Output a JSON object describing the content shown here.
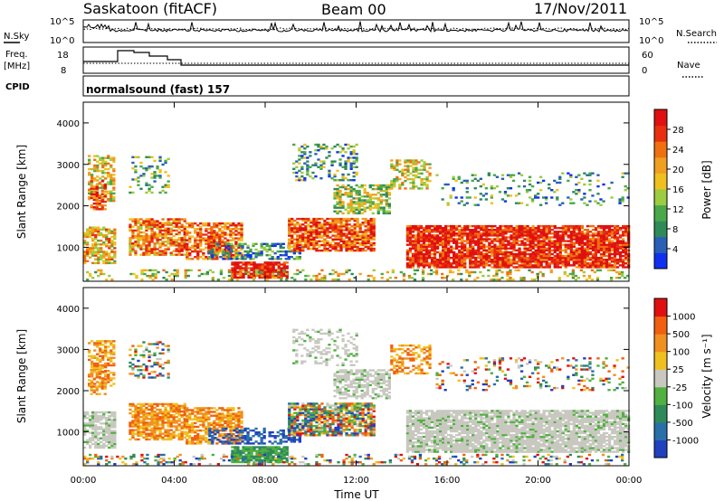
{
  "header": {
    "title": "Saskatoon (fitACF)",
    "beam": "Beam 00",
    "date": "17/Nov/2011"
  },
  "strips": {
    "nsky_label": "N.Sky",
    "nsearch_label": "N.Search",
    "nsky_ticks": [
      "10^5",
      "10^0"
    ],
    "nsearch_ticks": [
      "10^5",
      "10^0"
    ],
    "freq_label": "Freq.",
    "freq_unit": "[MHz]",
    "freq_ticks": [
      "18",
      "8"
    ],
    "nave_label": "Nave",
    "nave_ticks": [
      "60",
      "0"
    ],
    "cpid_label": "CPID",
    "cpid_value": "normalsound (fast) 157"
  },
  "chart_data": [
    {
      "type": "heatmap",
      "name": "power",
      "ylabel": "Slant Range [km]",
      "xlabel": "",
      "ylim": [
        180,
        4500
      ],
      "yticks": [
        "4000",
        "3000",
        "2000",
        "1000"
      ],
      "colorbar": {
        "label": "Power [dB]",
        "ticks": [
          "28",
          "24",
          "20",
          "16",
          "12",
          "8",
          "4"
        ],
        "colors": [
          "#1030f0",
          "#2a5fb8",
          "#2f8a5a",
          "#4aa84a",
          "#9ccc40",
          "#f0c020",
          "#f0a020",
          "#f07010",
          "#e83010",
          "#e01010"
        ]
      }
    },
    {
      "type": "heatmap",
      "name": "velocity",
      "ylabel": "Slant Range [km]",
      "xlabel": "Time UT",
      "ylim": [
        180,
        4500
      ],
      "yticks": [
        "4000",
        "3000",
        "2000",
        "1000"
      ],
      "xticks": [
        "00:00",
        "04:00",
        "08:00",
        "12:00",
        "16:00",
        "20:00",
        "00:00"
      ],
      "colorbar": {
        "label": "Velocity [m s⁻¹]",
        "ticks": [
          "1000",
          "500",
          "100",
          "25",
          "-25",
          "-100",
          "-500",
          "-1000"
        ],
        "colors": [
          "#2040c0",
          "#2a70a8",
          "#2f8a5a",
          "#50b040",
          "#c8c8c0",
          "#f0c020",
          "#f09020",
          "#f06010",
          "#e01010"
        ]
      }
    }
  ]
}
